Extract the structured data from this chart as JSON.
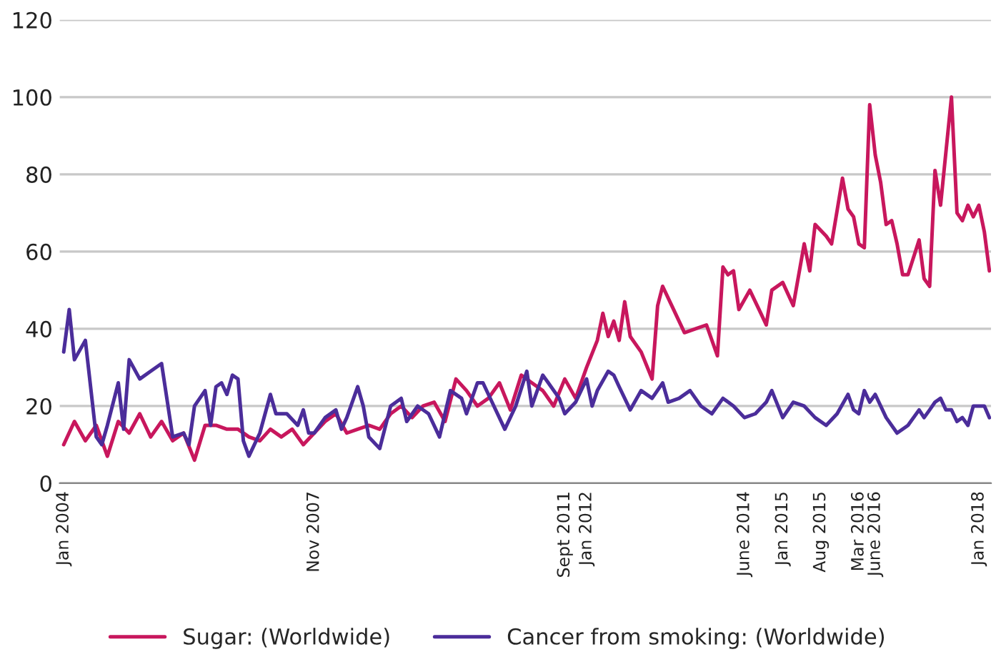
{
  "chart_data": {
    "type": "line",
    "xlim": [
      "2003-12-10",
      "2018-03-10"
    ],
    "xticks": [
      {
        "value": "2004-01",
        "label": "Jan 2004"
      },
      {
        "value": "2007-11",
        "label": "Nov 2007"
      },
      {
        "value": "2011-09",
        "label": "Sept 2011"
      },
      {
        "value": "2012-01",
        "label": "Jan 2012"
      },
      {
        "value": "2014-06",
        "label": "June 2014"
      },
      {
        "value": "2015-01",
        "label": "Jan 2015"
      },
      {
        "value": "2015-08",
        "label": "Aug 2015"
      },
      {
        "value": "2016-03",
        "label": "Mar 2016"
      },
      {
        "value": "2016-06",
        "label": "June 2016"
      },
      {
        "value": "2018-01",
        "label": "Jan 2018"
      }
    ],
    "ylim": [
      0,
      120
    ],
    "yticks": [
      0,
      20,
      40,
      60,
      80,
      100,
      120
    ],
    "grid": "y",
    "legend": "bottom",
    "line_style": "solid",
    "series": [
      {
        "name": "Sugar: (Worldwide)",
        "color": "#c8175d",
        "x": [
          "2004-01",
          "2004-03",
          "2004-05",
          "2004-07",
          "2004-09",
          "2004-11",
          "2005-01",
          "2005-03",
          "2005-05",
          "2005-07",
          "2005-09",
          "2005-11",
          "2006-01",
          "2006-03",
          "2006-05",
          "2006-07",
          "2006-09",
          "2006-11",
          "2007-01",
          "2007-03",
          "2007-05",
          "2007-07",
          "2007-09",
          "2007-11",
          "2008-01",
          "2008-03",
          "2008-05",
          "2008-07",
          "2008-09",
          "2008-11",
          "2009-01",
          "2009-03",
          "2009-05",
          "2009-07",
          "2009-09",
          "2009-11",
          "2010-01",
          "2010-03",
          "2010-05",
          "2010-07",
          "2010-09",
          "2010-11",
          "2011-01",
          "2011-03",
          "2011-05",
          "2011-07",
          "2011-09",
          "2011-11",
          "2012-01",
          "2012-03",
          "2012-04",
          "2012-05",
          "2012-06",
          "2012-07",
          "2012-08",
          "2012-09",
          "2012-11",
          "2013-01",
          "2013-02",
          "2013-03",
          "2013-05",
          "2013-07",
          "2013-09",
          "2013-11",
          "2014-01",
          "2014-02",
          "2014-03",
          "2014-04",
          "2014-05",
          "2014-07",
          "2014-09",
          "2014-10",
          "2014-11",
          "2015-01",
          "2015-03",
          "2015-05",
          "2015-06",
          "2015-07",
          "2015-09",
          "2015-10",
          "2015-12",
          "2016-01",
          "2016-02",
          "2016-03",
          "2016-04",
          "2016-05",
          "2016-06",
          "2016-07",
          "2016-08",
          "2016-09",
          "2016-10",
          "2016-11",
          "2016-12",
          "2017-02",
          "2017-03",
          "2017-04",
          "2017-05",
          "2017-06",
          "2017-08",
          "2017-09",
          "2017-10",
          "2017-11",
          "2017-12",
          "2018-01",
          "2018-02",
          "2018-03"
        ],
        "values": [
          10,
          16,
          11,
          15,
          7,
          16,
          13,
          18,
          12,
          16,
          11,
          13,
          6,
          15,
          15,
          14,
          14,
          12,
          11,
          14,
          12,
          14,
          10,
          13,
          16,
          18,
          13,
          14,
          15,
          14,
          18,
          20,
          17,
          20,
          21,
          16,
          27,
          24,
          20,
          22,
          26,
          19,
          28,
          26,
          24,
          20,
          27,
          22,
          30,
          37,
          44,
          38,
          42,
          37,
          47,
          38,
          34,
          27,
          46,
          51,
          45,
          39,
          40,
          41,
          33,
          56,
          54,
          55,
          45,
          50,
          44,
          41,
          50,
          52,
          46,
          62,
          55,
          67,
          64,
          62,
          79,
          71,
          69,
          62,
          61,
          98,
          85,
          78,
          67,
          68,
          62,
          54,
          54,
          63,
          53,
          51,
          81,
          72,
          100,
          70,
          68,
          72,
          69,
          72,
          65,
          55
        ]
      },
      {
        "name": "Cancer from smoking: (Worldwide)",
        "color": "#4b2d9a",
        "x": [
          "2004-01",
          "2004-02",
          "2004-03",
          "2004-05",
          "2004-07",
          "2004-08",
          "2004-09",
          "2004-11",
          "2004-12",
          "2005-01",
          "2005-03",
          "2005-05",
          "2005-07",
          "2005-09",
          "2005-11",
          "2005-12",
          "2006-01",
          "2006-03",
          "2006-04",
          "2006-05",
          "2006-06",
          "2006-07",
          "2006-08",
          "2006-09",
          "2006-10",
          "2006-11",
          "2007-01",
          "2007-03",
          "2007-04",
          "2007-06",
          "2007-08",
          "2007-09",
          "2007-10",
          "2007-11",
          "2008-01",
          "2008-03",
          "2008-04",
          "2008-05",
          "2008-07",
          "2008-08",
          "2008-09",
          "2008-11",
          "2009-01",
          "2009-03",
          "2009-04",
          "2009-06",
          "2009-08",
          "2009-10",
          "2009-12",
          "2010-02",
          "2010-03",
          "2010-05",
          "2010-06",
          "2010-08",
          "2010-10",
          "2010-12",
          "2011-02",
          "2011-03",
          "2011-05",
          "2011-06",
          "2011-08",
          "2011-09",
          "2011-11",
          "2012-01",
          "2012-02",
          "2012-03",
          "2012-05",
          "2012-06",
          "2012-07",
          "2012-09",
          "2012-11",
          "2013-01",
          "2013-03",
          "2013-04",
          "2013-06",
          "2013-08",
          "2013-10",
          "2013-12",
          "2014-02",
          "2014-04",
          "2014-06",
          "2014-08",
          "2014-10",
          "2014-11",
          "2015-01",
          "2015-03",
          "2015-05",
          "2015-07",
          "2015-09",
          "2015-11",
          "2016-01",
          "2016-02",
          "2016-03",
          "2016-04",
          "2016-05",
          "2016-06",
          "2016-08",
          "2016-10",
          "2016-12",
          "2017-02",
          "2017-03",
          "2017-04",
          "2017-05",
          "2017-06",
          "2017-07",
          "2017-08",
          "2017-09",
          "2017-10",
          "2017-11",
          "2017-12",
          "2018-01",
          "2018-02",
          "2018-03"
        ],
        "values": [
          34,
          45,
          32,
          37,
          12,
          10,
          15,
          26,
          14,
          32,
          27,
          29,
          31,
          12,
          13,
          10,
          20,
          24,
          15,
          25,
          26,
          23,
          28,
          27,
          11,
          7,
          13,
          23,
          18,
          18,
          15,
          19,
          13,
          13,
          17,
          19,
          14,
          17,
          25,
          20,
          12,
          9,
          20,
          22,
          16,
          20,
          18,
          12,
          24,
          22,
          18,
          26,
          26,
          20,
          14,
          20,
          29,
          20,
          28,
          26,
          22,
          18,
          21,
          27,
          20,
          24,
          29,
          28,
          25,
          19,
          24,
          22,
          26,
          21,
          22,
          24,
          20,
          18,
          22,
          20,
          17,
          18,
          21,
          24,
          17,
          21,
          20,
          17,
          15,
          18,
          23,
          19,
          18,
          24,
          21,
          23,
          17,
          13,
          15,
          19,
          17,
          19,
          21,
          22,
          19,
          19,
          16,
          17,
          15,
          20,
          20,
          20,
          17
        ]
      }
    ]
  }
}
